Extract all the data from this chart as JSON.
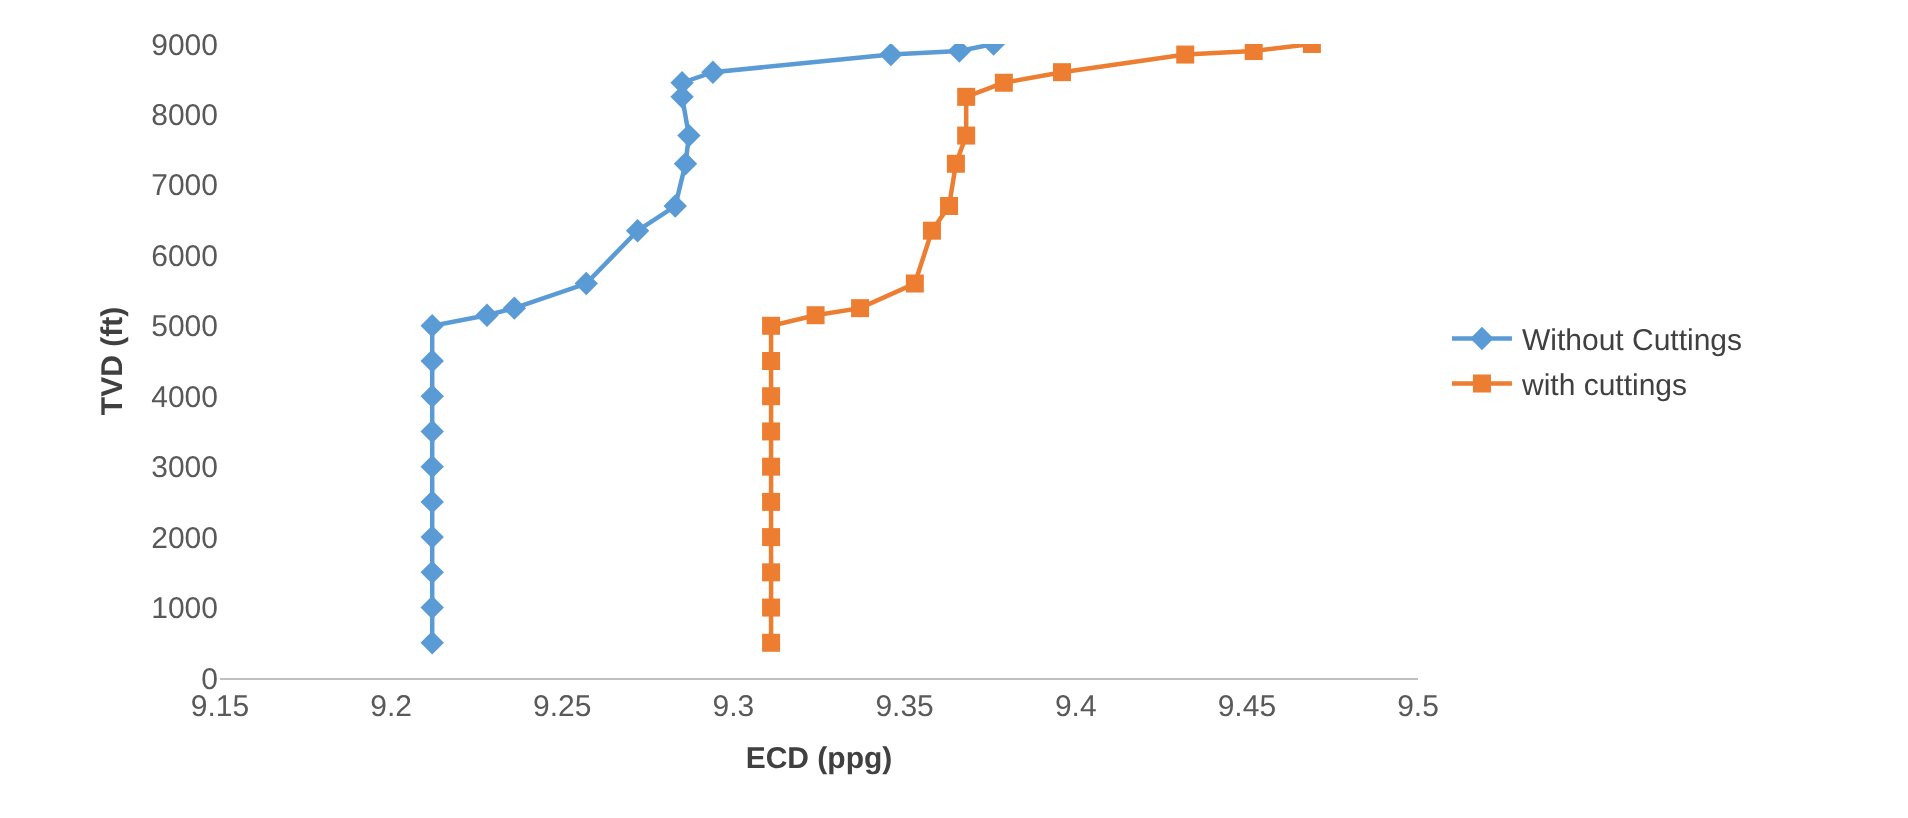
{
  "chart_data": {
    "type": "line",
    "xlabel": "ECD (ppg)",
    "ylabel": "TVD (ft)",
    "xlim": [
      9.15,
      9.5
    ],
    "xticks": [
      9.15,
      9.2,
      9.25,
      9.3,
      9.35,
      9.4,
      9.45,
      9.5
    ],
    "ylim": [
      0,
      9000
    ],
    "yticks": [
      0,
      1000,
      2000,
      3000,
      4000,
      5000,
      6000,
      7000,
      8000,
      9000
    ],
    "grid": false,
    "legend": "right",
    "series": [
      {
        "name": "Without Cuttings",
        "color": "#5b9bd5",
        "marker": "diamond",
        "x": [
          9.212,
          9.212,
          9.212,
          9.212,
          9.212,
          9.212,
          9.212,
          9.212,
          9.212,
          9.212,
          9.228,
          9.236,
          9.257,
          9.272,
          9.283,
          9.286,
          9.287,
          9.285,
          9.285,
          9.294,
          9.346,
          9.366,
          9.376
        ],
        "values": [
          500,
          1000,
          1500,
          2000,
          2500,
          3000,
          3500,
          4000,
          4500,
          5000,
          5150,
          5250,
          5600,
          6350,
          6700,
          7300,
          7700,
          8250,
          8450,
          8600,
          8850,
          8900,
          9000
        ]
      },
      {
        "name": "with cuttings",
        "color": "#ed7d31",
        "marker": "square",
        "x": [
          9.311,
          9.311,
          9.311,
          9.311,
          9.311,
          9.311,
          9.311,
          9.311,
          9.311,
          9.311,
          9.324,
          9.337,
          9.353,
          9.358,
          9.363,
          9.365,
          9.368,
          9.368,
          9.379,
          9.396,
          9.432,
          9.452,
          9.469
        ],
        "values": [
          500,
          1000,
          1500,
          2000,
          2500,
          3000,
          3500,
          4000,
          4500,
          5000,
          5150,
          5250,
          5600,
          6350,
          6700,
          7300,
          7700,
          8250,
          8450,
          8600,
          8850,
          8900,
          9000
        ]
      }
    ]
  }
}
